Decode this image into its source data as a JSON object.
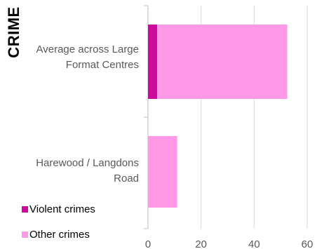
{
  "chart_data": {
    "type": "bar",
    "orientation": "horizontal",
    "stacked": true,
    "title": "CRIME",
    "categories": [
      "Average across Large Format Centres",
      "Harewood / Langdons Road"
    ],
    "category_lines": [
      [
        "Average across Large",
        "Format Centres"
      ],
      [
        "Harewood / Langdons",
        "Road"
      ]
    ],
    "series": [
      {
        "name": "Violent crimes",
        "color": "#cc0a9e",
        "values": [
          3.5,
          0
        ]
      },
      {
        "name": "Other crimes",
        "color": "#ff99e6",
        "values": [
          49,
          11
        ]
      }
    ],
    "xlim": [
      0,
      60
    ],
    "xticks": [
      0,
      20,
      40,
      60
    ],
    "grid": true,
    "legend": "bottom-left"
  }
}
